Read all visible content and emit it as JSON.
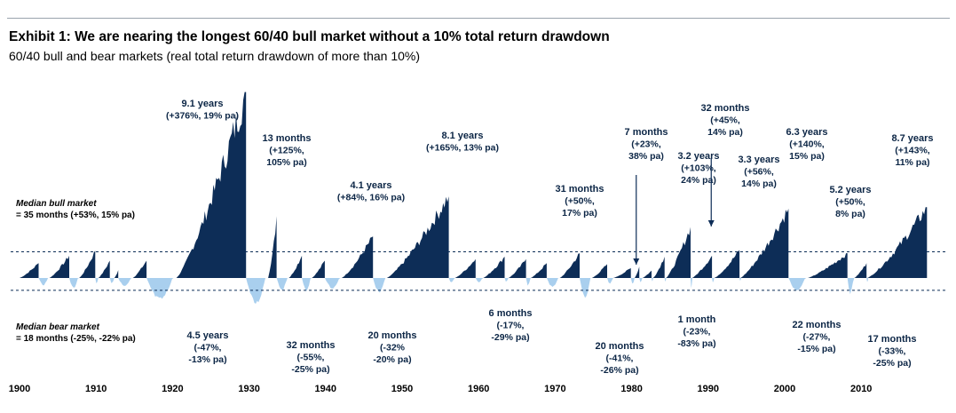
{
  "header": {
    "title": "Exhibit 1: We are nearing the longest 60/40 bull market without a 10% total return drawdown",
    "subtitle": "60/40 bull and bear markets (real total return drawdown of more than 10%)"
  },
  "colors": {
    "bull": "#0d2d57",
    "bear": "#a9cfee",
    "median_line": "#0d2d57",
    "axis_line": "#9aa3ad"
  },
  "chart_data": {
    "type": "area",
    "title": "Exhibit 1: We are nearing the longest 60/40 bull market without a 10% total return drawdown",
    "subtitle": "60/40 bull and bear markets (real total return drawdown of more than 10%)",
    "xlim": [
      1899,
      2019
    ],
    "ylim": [
      -90,
      380
    ],
    "x_ticks": [
      1900,
      1910,
      1920,
      1930,
      1940,
      1950,
      1960,
      1970,
      1980,
      1990,
      2000,
      2010
    ],
    "median_bull": {
      "label_italic": "Median bull market",
      "label_text": "= 35 months (+53%, 15% pa)",
      "value": 53
    },
    "median_bear": {
      "label_italic": "Median bear market",
      "label_text": "= 18 months (-25%, -22% pa)",
      "value": -25
    },
    "bull_markets": [
      {
        "start": 1900.0,
        "end": 1902.5,
        "peak": 30
      },
      {
        "start": 1903.9,
        "end": 1906.5,
        "peak": 45
      },
      {
        "start": 1907.8,
        "end": 1909.9,
        "peak": 55
      },
      {
        "start": 1910.3,
        "end": 1911.8,
        "peak": 35
      },
      {
        "start": 1912.4,
        "end": 1912.9,
        "peak": 16
      },
      {
        "start": 1914.8,
        "end": 1916.6,
        "peak": 35
      },
      {
        "start": 1921.6,
        "end": 1922.2,
        "peak": 8
      },
      {
        "start": 1920.5,
        "end": 1929.6,
        "peak": 376,
        "label_lines": [
          "9.1 years",
          "(+376%, 19% pa)"
        ]
      },
      {
        "start": 1932.5,
        "end": 1933.6,
        "peak": 125,
        "label_lines": [
          "13 months",
          "(+125%,",
          "105% pa)"
        ]
      },
      {
        "start": 1935.2,
        "end": 1936.9,
        "peak": 45
      },
      {
        "start": 1938.2,
        "end": 1939.9,
        "peak": 35
      },
      {
        "start": 1942.1,
        "end": 1946.2,
        "peak": 84,
        "label_lines": [
          "4.1 years",
          "(+84%, 16% pa)"
        ]
      },
      {
        "start": 1948.0,
        "end": 1956.1,
        "peak": 165,
        "label_lines": [
          "8.1 years",
          "(+165%, 13% pa)"
        ]
      },
      {
        "start": 1956.9,
        "end": 1959.6,
        "peak": 38
      },
      {
        "start": 1960.6,
        "end": 1963.4,
        "peak": 43
      },
      {
        "start": 1963.9,
        "end": 1966.2,
        "peak": 38
      },
      {
        "start": 1966.8,
        "end": 1968.9,
        "peak": 30
      },
      {
        "start": 1970.6,
        "end": 1973.2,
        "peak": 50,
        "label_lines": [
          "31 months",
          "(+50%,",
          "17% pa)"
        ]
      },
      {
        "start": 1974.8,
        "end": 1976.8,
        "peak": 28
      },
      {
        "start": 1977.6,
        "end": 1979.9,
        "peak": 20
      },
      {
        "start": 1980.4,
        "end": 1981.0,
        "peak": 23,
        "label_lines": [
          "7 months",
          "(+23%,",
          "38% pa)"
        ]
      },
      {
        "start": 1981.4,
        "end": 1982.6,
        "peak": 15
      },
      {
        "start": 1982.8,
        "end": 1984.3,
        "peak": 43
      },
      {
        "start": 1984.5,
        "end": 1987.7,
        "peak": 103,
        "label_lines": [
          "3.2 years",
          "(+103%,",
          "24% pa)"
        ]
      },
      {
        "start": 1987.9,
        "end": 1990.5,
        "peak": 45,
        "label_lines": [
          "32 months",
          "(+45%,",
          "14% pa)"
        ]
      },
      {
        "start": 1990.8,
        "end": 1994.1,
        "peak": 56,
        "label_lines": [
          "3.3 years",
          "(+56%,",
          "14% pa)"
        ]
      },
      {
        "start": 1994.2,
        "end": 2000.5,
        "peak": 140,
        "label_lines": [
          "6.3 years",
          "(+140%,",
          "15% pa)"
        ]
      },
      {
        "start": 2003.0,
        "end": 2008.2,
        "peak": 50,
        "label_lines": [
          "5.2 years",
          "(+50%,",
          "8% pa)"
        ]
      },
      {
        "start": 2009.1,
        "end": 2010.7,
        "peak": 30
      },
      {
        "start": 2010.8,
        "end": 2018.6,
        "peak": 143,
        "label_lines": [
          "8.7 years",
          "(+143%,",
          "11% pa)"
        ]
      }
    ],
    "bear_markets": [
      {
        "start": 1902.5,
        "end": 1903.9,
        "trough": -15
      },
      {
        "start": 1906.5,
        "end": 1907.8,
        "trough": -22
      },
      {
        "start": 1909.9,
        "end": 1910.3,
        "trough": -12
      },
      {
        "start": 1911.8,
        "end": 1912.4,
        "trough": -12
      },
      {
        "start": 1912.9,
        "end": 1914.8,
        "trough": -18
      },
      {
        "start": 1916.6,
        "end": 1920.5,
        "trough": -47,
        "label_lines": [
          "4.5 years",
          "(-47%,",
          "-13% pa)"
        ]
      },
      {
        "start": 1929.6,
        "end": 1932.5,
        "trough": -55,
        "label_lines": [
          "32 months",
          "(-55%,",
          "-25% pa)"
        ]
      },
      {
        "start": 1933.6,
        "end": 1935.2,
        "trough": -25
      },
      {
        "start": 1936.9,
        "end": 1938.2,
        "trough": -28
      },
      {
        "start": 1939.9,
        "end": 1942.1,
        "trough": -22
      },
      {
        "start": 1946.2,
        "end": 1948.0,
        "trough": -32,
        "label_lines": [
          "20 months",
          "(-32%",
          "-20% pa)"
        ]
      },
      {
        "start": 1956.1,
        "end": 1956.9,
        "trough": -10
      },
      {
        "start": 1959.6,
        "end": 1960.6,
        "trough": -10
      },
      {
        "start": 1963.4,
        "end": 1963.9,
        "trough": -8
      },
      {
        "start": 1966.2,
        "end": 1966.8,
        "trough": -17,
        "label_lines": [
          "6 months",
          "(-17%,",
          "-29% pa)"
        ]
      },
      {
        "start": 1968.9,
        "end": 1970.6,
        "trough": -20
      },
      {
        "start": 1973.2,
        "end": 1974.8,
        "trough": -41,
        "label_lines": [
          "20 months",
          "(-41%,",
          "-26% pa)"
        ]
      },
      {
        "start": 1976.8,
        "end": 1977.6,
        "trough": -12
      },
      {
        "start": 1979.9,
        "end": 1980.4,
        "trough": -14
      },
      {
        "start": 1981.0,
        "end": 1981.4,
        "trough": -10
      },
      {
        "start": 1982.6,
        "end": 1982.8,
        "trough": -8
      },
      {
        "start": 1984.3,
        "end": 1984.5,
        "trough": -8
      },
      {
        "start": 1987.7,
        "end": 1987.9,
        "trough": -23,
        "label_lines": [
          "1 month",
          "(-23%,",
          "-83% pa)"
        ]
      },
      {
        "start": 1990.5,
        "end": 1990.8,
        "trough": -10
      },
      {
        "start": 1994.1,
        "end": 1994.2,
        "trough": -6
      },
      {
        "start": 2000.5,
        "end": 2003.0,
        "trough": -27,
        "label_lines": [
          "22 months",
          "(-27%,",
          "-15% pa)"
        ]
      },
      {
        "start": 2008.2,
        "end": 2009.1,
        "trough": -33,
        "label_lines": [
          "17 months",
          "(-33%,",
          "-25% pa)"
        ]
      },
      {
        "start": 2010.7,
        "end": 2010.8,
        "trough": -10
      }
    ],
    "arrows": [
      {
        "label": "7 months",
        "target_x": 1980.6
      },
      {
        "label": "32 months",
        "target_x": 1990.4
      }
    ]
  }
}
